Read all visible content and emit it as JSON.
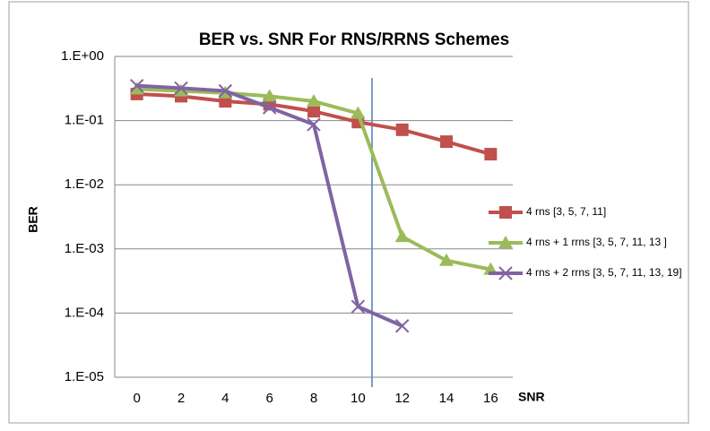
{
  "chart_data": {
    "type": "line",
    "title": "BER vs. SNR For RNS/RRNS Schemes",
    "x_label": "SNR",
    "y_label": "BER",
    "categories": [
      "0",
      "2",
      "4",
      "6",
      "8",
      "10",
      "12",
      "14",
      "16"
    ],
    "log_scale": "y",
    "grid": true,
    "legend": "right",
    "ylim": [
      1e-05,
      1
    ],
    "yticks": [
      {
        "value": 1,
        "label": "1.E+00"
      },
      {
        "value": 0.1,
        "label": "1.E-01"
      },
      {
        "value": 0.01,
        "label": "1.E-02"
      },
      {
        "value": 0.001,
        "label": "1.E-03"
      },
      {
        "value": 0.0001,
        "label": "1.E-04"
      },
      {
        "value": 1e-05,
        "label": "1.E-05"
      }
    ],
    "series": [
      {
        "name": "4 rns [3, 5, 7, 11]",
        "color": "#c0504d",
        "marker": "square",
        "values": [
          0.26,
          0.24,
          0.2,
          0.18,
          0.14,
          0.095,
          0.072,
          0.047,
          0.03
        ]
      },
      {
        "name": "4 rns + 1 rrns [3, 5, 7, 11, 13 ]",
        "color": "#9bbb59",
        "marker": "triangle",
        "values": [
          0.31,
          0.29,
          0.27,
          0.24,
          0.2,
          0.13,
          0.00155,
          0.00066,
          0.00048
        ]
      },
      {
        "name": "4 rns + 2 rrns [3, 5, 7, 11, 13, 19]",
        "color": "#8064a2",
        "marker": "x",
        "values": [
          0.35,
          0.32,
          0.29,
          0.16,
          0.087,
          0.000126,
          6.3e-05,
          null,
          null
        ]
      }
    ]
  }
}
